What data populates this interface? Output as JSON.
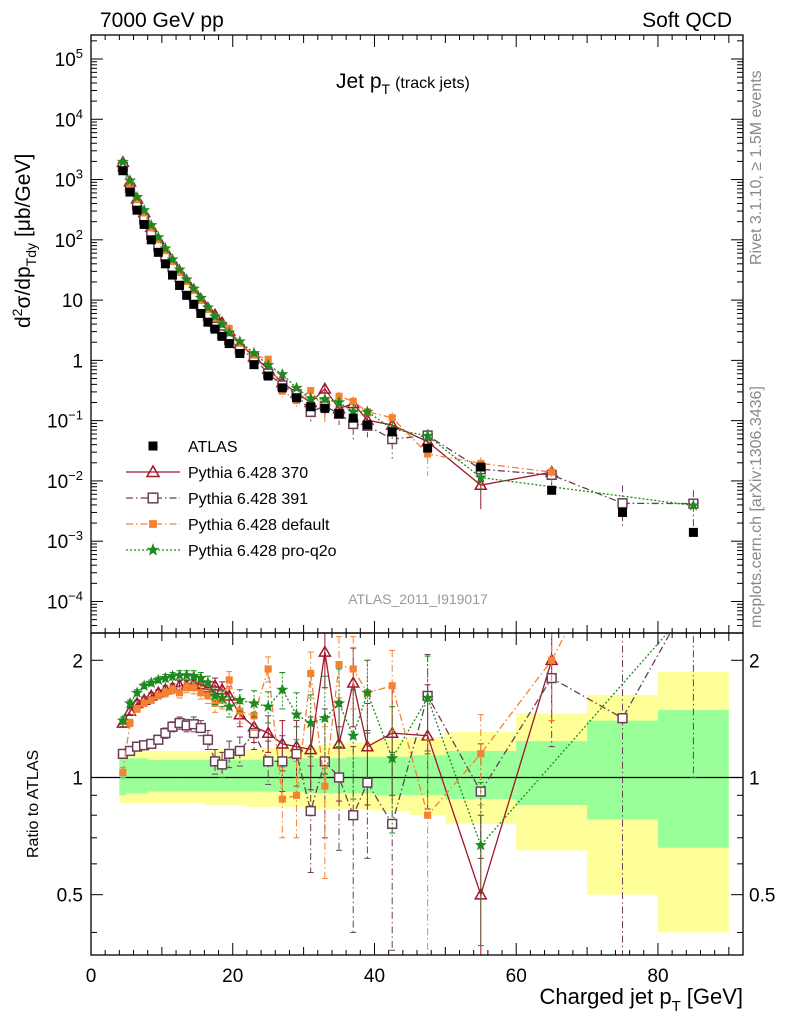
{
  "header": {
    "left": "7000 GeV pp",
    "right": "Soft QCD"
  },
  "side_text": {
    "rivet": "Rivet 3.1.10, ≥ 1.5M events",
    "mcplots": "mcplots.cern.ch [arXiv:1306.3436]"
  },
  "main_title": {
    "text": "Jet p",
    "sub": "T",
    "small": "(track jets)"
  },
  "analysis_label": "ATLAS_2011_I919017",
  "ratio_ylabel": "Ratio to ATLAS",
  "xlabel": {
    "text": "Charged jet p",
    "sub": "T",
    "unit": "[GeV]"
  },
  "ylabel": {
    "pre": "d",
    "sup": "2",
    "mid": "σ/dp",
    "sub": "Tdy",
    "unit": "[μb/GeV]"
  },
  "colors": {
    "atlas": "#000000",
    "p370": "#a0162d",
    "p391": "#6b3e58",
    "pdefault": "#f58231",
    "proq2o": "#1f8a1f",
    "band_inner": "#99ff99",
    "band_outer": "#ffff99"
  },
  "legend": [
    {
      "key": "atlas",
      "label": "ATLAS"
    },
    {
      "key": "p370",
      "label": "Pythia 6.428 370"
    },
    {
      "key": "p391",
      "label": "Pythia 6.428 391"
    },
    {
      "key": "pdefault",
      "label": "Pythia 6.428 default"
    },
    {
      "key": "proq2o",
      "label": "Pythia 6.428 pro-q2o"
    }
  ],
  "chart_data": {
    "type": "scatter",
    "x_scale": "linear",
    "xlim": [
      0,
      92
    ],
    "main_ylim": [
      3e-05,
      250000
    ],
    "main_y_scale": "log",
    "main_yticks": [
      {
        "v": 0.0001,
        "base": "10",
        "exp": "−4"
      },
      {
        "v": 0.001,
        "base": "10",
        "exp": "−3"
      },
      {
        "v": 0.01,
        "base": "10",
        "exp": "−2"
      },
      {
        "v": 0.1,
        "base": "10",
        "exp": "−1"
      },
      {
        "v": 1,
        "base": "1",
        "exp": ""
      },
      {
        "v": 10,
        "base": "10",
        "exp": ""
      },
      {
        "v": 100,
        "base": "10",
        "exp": "2"
      },
      {
        "v": 1000,
        "base": "10",
        "exp": "3"
      },
      {
        "v": 10000,
        "base": "10",
        "exp": "4"
      },
      {
        "v": 100000,
        "base": "10",
        "exp": "5"
      }
    ],
    "ratio_ylim": [
      0.35,
      2.35
    ],
    "ratio_y_scale": "log",
    "ratio_yticks": [
      {
        "v": 0.5,
        "label": "0.5"
      },
      {
        "v": 1,
        "label": "1"
      },
      {
        "v": 2,
        "label": "2"
      }
    ],
    "xticks": [
      0,
      20,
      40,
      60,
      80
    ],
    "x": [
      4.5,
      5.5,
      6.5,
      7.5,
      8.5,
      9.5,
      10.5,
      11.5,
      12.5,
      13.5,
      14.5,
      15.5,
      16.5,
      17.5,
      18.5,
      19.5,
      21,
      23,
      25,
      27,
      29,
      31,
      33,
      35,
      37,
      39,
      42.5,
      47.5,
      55,
      65,
      75,
      85
    ],
    "x_edges": [
      4,
      5,
      6,
      7,
      8,
      9,
      10,
      11,
      12,
      13,
      14,
      15,
      16,
      17,
      18,
      19,
      20,
      22,
      24,
      26,
      28,
      30,
      32,
      34,
      36,
      38,
      40,
      45,
      50,
      60,
      70,
      80,
      90
    ],
    "atlas": [
      1400,
      620,
      310,
      180,
      100,
      62,
      40,
      26,
      17.5,
      12,
      8.5,
      6.0,
      4.3,
      3.3,
      2.5,
      1.9,
      1.3,
      0.85,
      0.55,
      0.35,
      0.24,
      0.17,
      0.16,
      0.13,
      0.11,
      0.085,
      0.065,
      0.035,
      0.017,
      0.007,
      0.003,
      0.0014
    ],
    "band_inner": [
      [
        0.9,
        1.12
      ],
      [
        0.91,
        1.12
      ],
      [
        0.91,
        1.12
      ],
      [
        0.91,
        1.12
      ],
      [
        0.92,
        1.11
      ],
      [
        0.92,
        1.11
      ],
      [
        0.92,
        1.11
      ],
      [
        0.92,
        1.11
      ],
      [
        0.92,
        1.11
      ],
      [
        0.92,
        1.11
      ],
      [
        0.92,
        1.11
      ],
      [
        0.92,
        1.11
      ],
      [
        0.92,
        1.11
      ],
      [
        0.92,
        1.11
      ],
      [
        0.92,
        1.11
      ],
      [
        0.92,
        1.11
      ],
      [
        0.92,
        1.11
      ],
      [
        0.92,
        1.11
      ],
      [
        0.92,
        1.11
      ],
      [
        0.92,
        1.11
      ],
      [
        0.92,
        1.12
      ],
      [
        0.91,
        1.12
      ],
      [
        0.91,
        1.12
      ],
      [
        0.91,
        1.12
      ],
      [
        0.91,
        1.13
      ],
      [
        0.91,
        1.13
      ],
      [
        0.9,
        1.13
      ],
      [
        0.9,
        1.14
      ],
      [
        0.88,
        1.17
      ],
      [
        0.85,
        1.24
      ],
      [
        0.78,
        1.4
      ],
      [
        0.66,
        1.49
      ]
    ],
    "band_outer": [
      [
        0.86,
        1.18
      ],
      [
        0.86,
        1.18
      ],
      [
        0.86,
        1.18
      ],
      [
        0.86,
        1.18
      ],
      [
        0.86,
        1.17
      ],
      [
        0.86,
        1.17
      ],
      [
        0.86,
        1.17
      ],
      [
        0.86,
        1.17
      ],
      [
        0.86,
        1.17
      ],
      [
        0.86,
        1.17
      ],
      [
        0.86,
        1.17
      ],
      [
        0.86,
        1.17
      ],
      [
        0.85,
        1.17
      ],
      [
        0.85,
        1.18
      ],
      [
        0.85,
        1.18
      ],
      [
        0.85,
        1.18
      ],
      [
        0.85,
        1.18
      ],
      [
        0.84,
        1.18
      ],
      [
        0.84,
        1.19
      ],
      [
        0.84,
        1.19
      ],
      [
        0.84,
        1.2
      ],
      [
        0.83,
        1.2
      ],
      [
        0.83,
        1.21
      ],
      [
        0.83,
        1.22
      ],
      [
        0.83,
        1.23
      ],
      [
        0.83,
        1.23
      ],
      [
        0.82,
        1.25
      ],
      [
        0.8,
        1.27
      ],
      [
        0.76,
        1.31
      ],
      [
        0.65,
        1.46
      ],
      [
        0.5,
        1.63
      ],
      [
        0.4,
        1.87
      ]
    ],
    "series": [
      {
        "key": "p370",
        "name": "Pythia 6.428 370",
        "marker": "open-triangle",
        "line": "solid",
        "ratio": [
          1.38,
          1.48,
          1.55,
          1.58,
          1.62,
          1.65,
          1.68,
          1.7,
          1.72,
          1.72,
          1.74,
          1.73,
          1.7,
          1.72,
          1.68,
          1.62,
          1.45,
          1.35,
          1.3,
          1.22,
          1.2,
          1.18,
          2.1,
          1.22,
          1.75,
          1.2,
          1.3,
          1.28,
          0.5,
          2.0,
          null,
          null
        ],
        "ratio_err": [
          0.03,
          0.03,
          0.03,
          0.03,
          0.03,
          0.03,
          0.04,
          0.04,
          0.05,
          0.05,
          0.06,
          0.06,
          0.07,
          0.08,
          0.08,
          0.09,
          0.1,
          0.12,
          0.14,
          0.18,
          0.2,
          0.25,
          0.4,
          0.35,
          0.4,
          0.35,
          0.4,
          0.45,
          0.3,
          0.6,
          null,
          null
        ]
      },
      {
        "key": "p391",
        "name": "Pythia 6.428 391",
        "marker": "open-square",
        "line": "dashdot",
        "ratio": [
          1.15,
          1.17,
          1.2,
          1.21,
          1.22,
          1.25,
          1.3,
          1.35,
          1.38,
          1.36,
          1.37,
          1.34,
          1.25,
          1.1,
          1.08,
          1.15,
          1.17,
          1.3,
          1.1,
          1.1,
          1.15,
          0.82,
          1.1,
          1.0,
          0.8,
          0.97,
          0.76,
          1.62,
          0.92,
          1.8,
          1.42,
          3.0
        ],
        "ratio_err": [
          0.03,
          0.03,
          0.03,
          0.03,
          0.03,
          0.03,
          0.04,
          0.04,
          0.05,
          0.05,
          0.06,
          0.06,
          0.07,
          0.08,
          0.08,
          0.09,
          0.1,
          0.12,
          0.14,
          0.18,
          0.2,
          0.25,
          0.4,
          0.35,
          0.4,
          0.35,
          0.4,
          0.45,
          0.3,
          0.6,
          1.4,
          2.0
        ]
      },
      {
        "key": "pdefault",
        "name": "Pythia 6.428 default",
        "marker": "filled-square",
        "line": "dashdot",
        "ratio": [
          1.03,
          1.38,
          1.5,
          1.55,
          1.58,
          1.62,
          1.65,
          1.68,
          1.65,
          1.7,
          1.7,
          1.65,
          1.62,
          1.55,
          1.58,
          1.78,
          1.48,
          1.44,
          1.9,
          0.88,
          0.9,
          1.85,
          0.95,
          1.95,
          1.9,
          1.65,
          1.72,
          0.8,
          1.15,
          2.0,
          4.5,
          null
        ],
        "ratio_err": [
          0.03,
          0.03,
          0.03,
          0.03,
          0.03,
          0.03,
          0.04,
          0.04,
          0.05,
          0.05,
          0.06,
          0.06,
          0.07,
          0.08,
          0.08,
          0.09,
          0.1,
          0.12,
          0.14,
          0.18,
          0.2,
          0.25,
          0.4,
          0.35,
          0.4,
          0.35,
          0.4,
          0.45,
          0.3,
          0.6,
          null,
          null
        ]
      },
      {
        "key": "proq2o",
        "name": "Pythia 6.428 pro-q2o",
        "marker": "star",
        "line": "dotted",
        "ratio": [
          1.4,
          1.55,
          1.65,
          1.72,
          1.75,
          1.78,
          1.8,
          1.82,
          1.83,
          1.83,
          1.82,
          1.8,
          1.75,
          1.62,
          1.6,
          1.52,
          1.58,
          1.55,
          1.52,
          1.68,
          1.45,
          1.38,
          1.42,
          1.55,
          1.28,
          1.65,
          1.12,
          1.6,
          0.67,
          null,
          null,
          2.8
        ],
        "ratio_err": [
          0.03,
          0.03,
          0.03,
          0.03,
          0.03,
          0.03,
          0.04,
          0.04,
          0.05,
          0.05,
          0.06,
          0.06,
          0.07,
          0.08,
          0.08,
          0.09,
          0.1,
          0.12,
          0.14,
          0.18,
          0.2,
          0.25,
          0.4,
          0.35,
          0.4,
          0.35,
          0.4,
          0.45,
          0.3,
          null,
          null,
          null
        ]
      }
    ]
  }
}
